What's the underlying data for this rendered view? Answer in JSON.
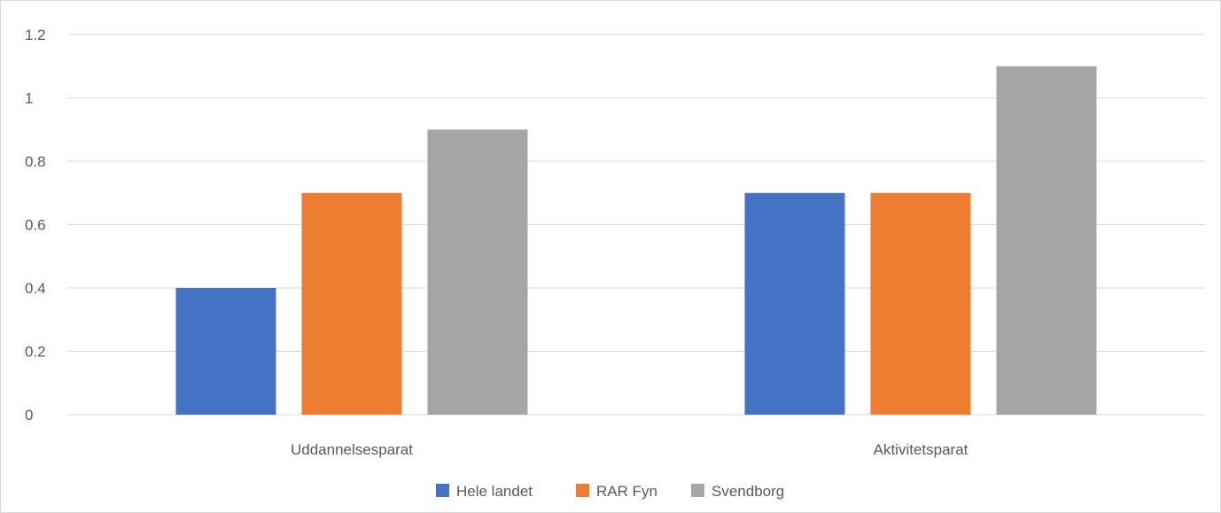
{
  "chart_data": {
    "type": "bar",
    "title": "",
    "xlabel": "",
    "ylabel": "",
    "categories": [
      "Uddannelsesparat",
      "Aktivitetsparat"
    ],
    "series": [
      {
        "name": "Hele landet",
        "values": [
          0.4,
          0.7
        ],
        "color": "#4472C4"
      },
      {
        "name": "RAR Fyn",
        "values": [
          0.7,
          0.7
        ],
        "color": "#ED7D31"
      },
      {
        "name": "Svendborg",
        "values": [
          0.9,
          1.1
        ],
        "color": "#A5A5A5"
      }
    ],
    "ylim": [
      0,
      1.2
    ],
    "yticks": [
      "0",
      "0.2",
      "0.4",
      "0.6",
      "0.8",
      "1",
      "1.2"
    ],
    "grid": true,
    "legend_position": "bottom"
  }
}
